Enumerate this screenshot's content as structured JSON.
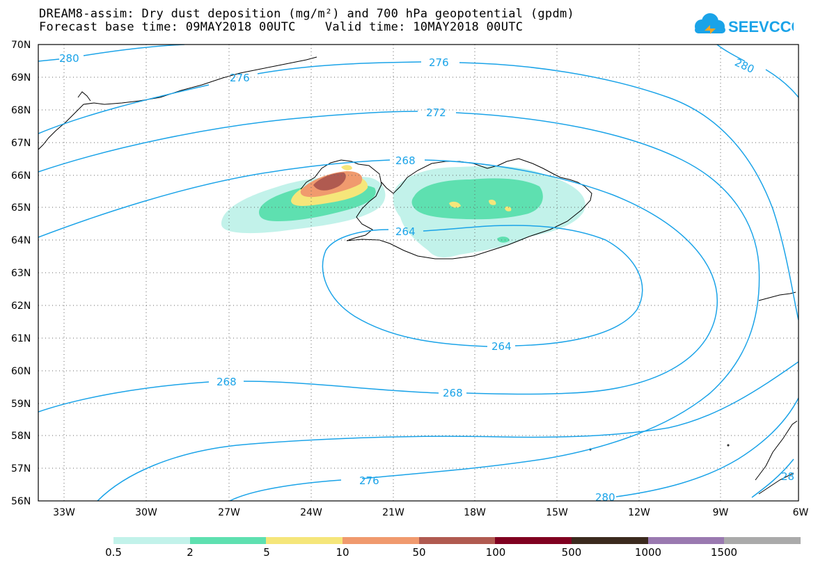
{
  "header": {
    "title_line1": "DREAM8-assim: Dry dust deposition (mg/m²) and 700 hPa geopotential (gpdm)",
    "title_line2": "Forecast base time: 09MAY2018 00UTC    Valid time: 10MAY2018 00UTC",
    "logo_text": "SEEVCCC"
  },
  "map": {
    "lat_labels": [
      "70N",
      "69N",
      "68N",
      "67N",
      "66N",
      "65N",
      "64N",
      "63N",
      "62N",
      "61N",
      "60N",
      "59N",
      "58N",
      "57N",
      "56N"
    ],
    "lon_labels": [
      "33W",
      "30W",
      "27W",
      "24W",
      "21W",
      "18W",
      "15W",
      "12W",
      "9W",
      "6W"
    ],
    "contour_color": "#1aa3e8",
    "contour_labels": [
      "280",
      "276",
      "280",
      "276",
      "272",
      "268",
      "264",
      "264",
      "268",
      "268",
      "276",
      "280",
      "28"
    ]
  },
  "legend": {
    "colors": [
      "#c2f2ea",
      "#5ee0b0",
      "#f5e67a",
      "#f09a6e",
      "#b05a50",
      "#800020",
      "#3b2a1e",
      "#9a79b0",
      "#aaaaaa"
    ],
    "labels": [
      "0.5",
      "2",
      "5",
      "10",
      "50",
      "100",
      "500",
      "1000",
      "1500"
    ]
  }
}
